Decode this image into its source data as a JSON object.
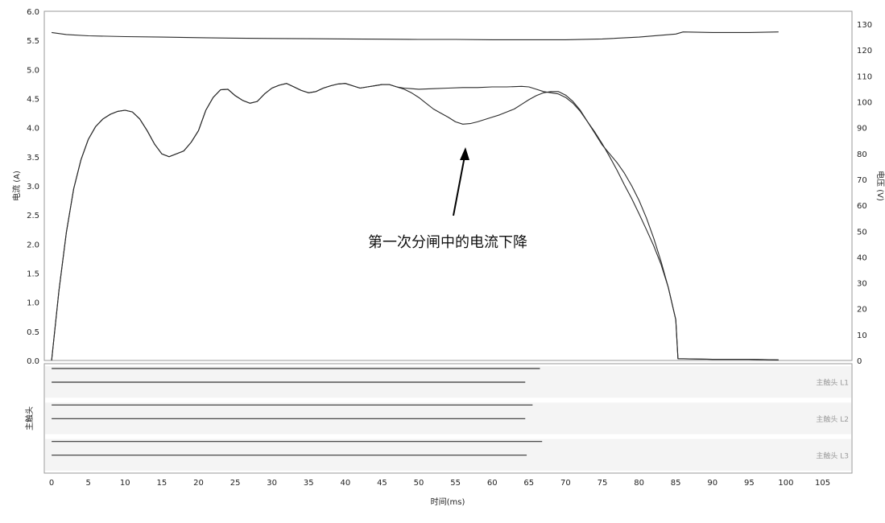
{
  "chart_data": [
    {
      "type": "line",
      "ylabel": "电流 (A)",
      "y2label": "电压 (V)",
      "xlabel": "时间(ms)",
      "xlim": [
        -1,
        109
      ],
      "ylim": [
        0,
        6
      ],
      "y2lim": [
        0,
        135
      ],
      "x_ticks": [
        0,
        5,
        10,
        15,
        20,
        25,
        30,
        35,
        40,
        45,
        50,
        55,
        60,
        65,
        70,
        75,
        80,
        85,
        90,
        95,
        100,
        105
      ],
      "y_ticks": [
        "0.0",
        "0.5",
        "1.0",
        "1.5",
        "2.0",
        "2.5",
        "3.0",
        "3.5",
        "4.0",
        "4.5",
        "5.0",
        "5.5",
        "6.0"
      ],
      "y2_ticks": [
        0,
        10,
        20,
        30,
        40,
        50,
        60,
        70,
        80,
        90,
        100,
        110,
        120,
        130
      ],
      "grid": true,
      "annotation": "第一次分闸中的电流下降",
      "series": [
        {
          "axis": "right",
          "points": [
            [
              0,
              126.8
            ],
            [
              2,
              126.0
            ],
            [
              5,
              125.5
            ],
            [
              10,
              125.2
            ],
            [
              15,
              125.0
            ],
            [
              20,
              124.8
            ],
            [
              25,
              124.6
            ],
            [
              30,
              124.5
            ],
            [
              35,
              124.4
            ],
            [
              40,
              124.3
            ],
            [
              45,
              124.2
            ],
            [
              50,
              124.1
            ],
            [
              55,
              124.1
            ],
            [
              60,
              124.0
            ],
            [
              65,
              124.0
            ],
            [
              70,
              124.0
            ],
            [
              75,
              124.3
            ],
            [
              80,
              125.0
            ],
            [
              85,
              126.2
            ],
            [
              86,
              127.0
            ],
            [
              90,
              126.8
            ],
            [
              95,
              126.8
            ],
            [
              99,
              127.0
            ]
          ]
        },
        {
          "axis": "left",
          "points": [
            [
              0,
              0.0
            ],
            [
              1,
              1.2
            ],
            [
              2,
              2.2
            ],
            [
              3,
              2.95
            ],
            [
              4,
              3.45
            ],
            [
              5,
              3.8
            ],
            [
              6,
              4.02
            ],
            [
              7,
              4.15
            ],
            [
              8,
              4.23
            ],
            [
              9,
              4.28
            ],
            [
              10,
              4.3
            ],
            [
              11,
              4.27
            ],
            [
              12,
              4.15
            ],
            [
              13,
              3.95
            ],
            [
              14,
              3.72
            ],
            [
              15,
              3.55
            ],
            [
              16,
              3.5
            ],
            [
              18,
              3.6
            ],
            [
              19,
              3.75
            ],
            [
              20,
              3.95
            ],
            [
              21,
              4.3
            ],
            [
              22,
              4.52
            ],
            [
              23,
              4.65
            ],
            [
              24,
              4.66
            ],
            [
              25,
              4.55
            ],
            [
              26,
              4.47
            ],
            [
              27,
              4.42
            ],
            [
              28,
              4.45
            ],
            [
              29,
              4.58
            ],
            [
              30,
              4.68
            ],
            [
              31,
              4.73
            ],
            [
              32,
              4.76
            ],
            [
              33,
              4.7
            ],
            [
              34,
              4.64
            ],
            [
              35,
              4.6
            ],
            [
              36,
              4.62
            ],
            [
              37,
              4.68
            ],
            [
              38,
              4.72
            ],
            [
              39,
              4.75
            ],
            [
              40,
              4.76
            ],
            [
              41,
              4.72
            ],
            [
              42,
              4.68
            ],
            [
              43,
              4.7
            ],
            [
              44,
              4.72
            ],
            [
              45,
              4.74
            ],
            [
              46,
              4.74
            ],
            [
              47,
              4.7
            ],
            [
              48,
              4.66
            ],
            [
              49,
              4.6
            ],
            [
              50,
              4.52
            ],
            [
              51,
              4.42
            ],
            [
              52,
              4.32
            ],
            [
              53,
              4.25
            ],
            [
              54,
              4.18
            ],
            [
              55,
              4.1
            ],
            [
              56,
              4.06
            ],
            [
              57,
              4.07
            ],
            [
              58,
              4.1
            ],
            [
              59,
              4.14
            ],
            [
              60,
              4.18
            ],
            [
              61,
              4.22
            ],
            [
              62,
              4.27
            ],
            [
              63,
              4.32
            ],
            [
              64,
              4.4
            ],
            [
              65,
              4.48
            ],
            [
              66,
              4.55
            ],
            [
              67,
              4.6
            ],
            [
              68,
              4.62
            ],
            [
              69,
              4.62
            ],
            [
              70,
              4.56
            ],
            [
              71,
              4.45
            ],
            [
              72,
              4.3
            ],
            [
              73,
              4.1
            ],
            [
              74,
              3.9
            ],
            [
              75,
              3.7
            ],
            [
              76,
              3.55
            ],
            [
              77,
              3.4
            ],
            [
              78,
              3.22
            ],
            [
              79,
              3.0
            ],
            [
              80,
              2.75
            ],
            [
              81,
              2.45
            ],
            [
              82,
              2.1
            ],
            [
              83,
              1.7
            ],
            [
              84,
              1.25
            ],
            [
              85,
              0.7
            ],
            [
              85.3,
              0.03
            ],
            [
              90,
              0.02
            ],
            [
              95,
              0.02
            ],
            [
              99,
              0.01
            ]
          ]
        },
        {
          "axis": "left",
          "points": [
            [
              0,
              0.0
            ],
            [
              1,
              1.2
            ],
            [
              2,
              2.2
            ],
            [
              3,
              2.95
            ],
            [
              4,
              3.45
            ],
            [
              5,
              3.8
            ],
            [
              6,
              4.02
            ],
            [
              7,
              4.15
            ],
            [
              8,
              4.23
            ],
            [
              9,
              4.28
            ],
            [
              10,
              4.3
            ],
            [
              11,
              4.27
            ],
            [
              12,
              4.15
            ],
            [
              13,
              3.95
            ],
            [
              14,
              3.72
            ],
            [
              15,
              3.55
            ],
            [
              16,
              3.5
            ],
            [
              18,
              3.6
            ],
            [
              19,
              3.75
            ],
            [
              20,
              3.95
            ],
            [
              21,
              4.3
            ],
            [
              22,
              4.52
            ],
            [
              23,
              4.65
            ],
            [
              24,
              4.66
            ],
            [
              25,
              4.55
            ],
            [
              26,
              4.47
            ],
            [
              27,
              4.42
            ],
            [
              28,
              4.45
            ],
            [
              29,
              4.58
            ],
            [
              30,
              4.68
            ],
            [
              31,
              4.73
            ],
            [
              32,
              4.76
            ],
            [
              33,
              4.7
            ],
            [
              34,
              4.64
            ],
            [
              35,
              4.6
            ],
            [
              36,
              4.62
            ],
            [
              37,
              4.68
            ],
            [
              38,
              4.72
            ],
            [
              39,
              4.75
            ],
            [
              40,
              4.76
            ],
            [
              41,
              4.72
            ],
            [
              42,
              4.68
            ],
            [
              43,
              4.7
            ],
            [
              44,
              4.72
            ],
            [
              45,
              4.74
            ],
            [
              46,
              4.74
            ],
            [
              47,
              4.7
            ],
            [
              48,
              4.68
            ],
            [
              49,
              4.67
            ],
            [
              50,
              4.66
            ],
            [
              52,
              4.67
            ],
            [
              54,
              4.68
            ],
            [
              56,
              4.69
            ],
            [
              58,
              4.69
            ],
            [
              60,
              4.7
            ],
            [
              62,
              4.7
            ],
            [
              64,
              4.71
            ],
            [
              65,
              4.7
            ],
            [
              66,
              4.66
            ],
            [
              67,
              4.62
            ],
            [
              68,
              4.6
            ],
            [
              69,
              4.58
            ],
            [
              70,
              4.52
            ],
            [
              71,
              4.42
            ],
            [
              72,
              4.28
            ],
            [
              73,
              4.1
            ],
            [
              74,
              3.92
            ],
            [
              75,
              3.72
            ],
            [
              76,
              3.5
            ],
            [
              77,
              3.27
            ],
            [
              78,
              3.02
            ],
            [
              79,
              2.78
            ],
            [
              80,
              2.52
            ],
            [
              81,
              2.25
            ],
            [
              82,
              1.97
            ],
            [
              83,
              1.65
            ],
            [
              84,
              1.25
            ],
            [
              85,
              0.7
            ],
            [
              85.3,
              0.03
            ],
            [
              90,
              0.02
            ],
            [
              95,
              0.02
            ],
            [
              99,
              0.01
            ]
          ]
        }
      ]
    },
    {
      "type": "line",
      "ylabel": "主触头",
      "lanes": [
        {
          "label": "主触头 L1",
          "lines": [
            {
              "start": 0,
              "end": 66.5
            },
            {
              "start": 0,
              "end": 64.5
            }
          ]
        },
        {
          "label": "主触头 L2",
          "lines": [
            {
              "start": 0,
              "end": 65.5
            },
            {
              "start": 0,
              "end": 64.5
            }
          ]
        },
        {
          "label": "主触头 L3",
          "lines": [
            {
              "start": 0,
              "end": 66.8
            },
            {
              "start": 0,
              "end": 64.7
            }
          ]
        }
      ]
    }
  ]
}
